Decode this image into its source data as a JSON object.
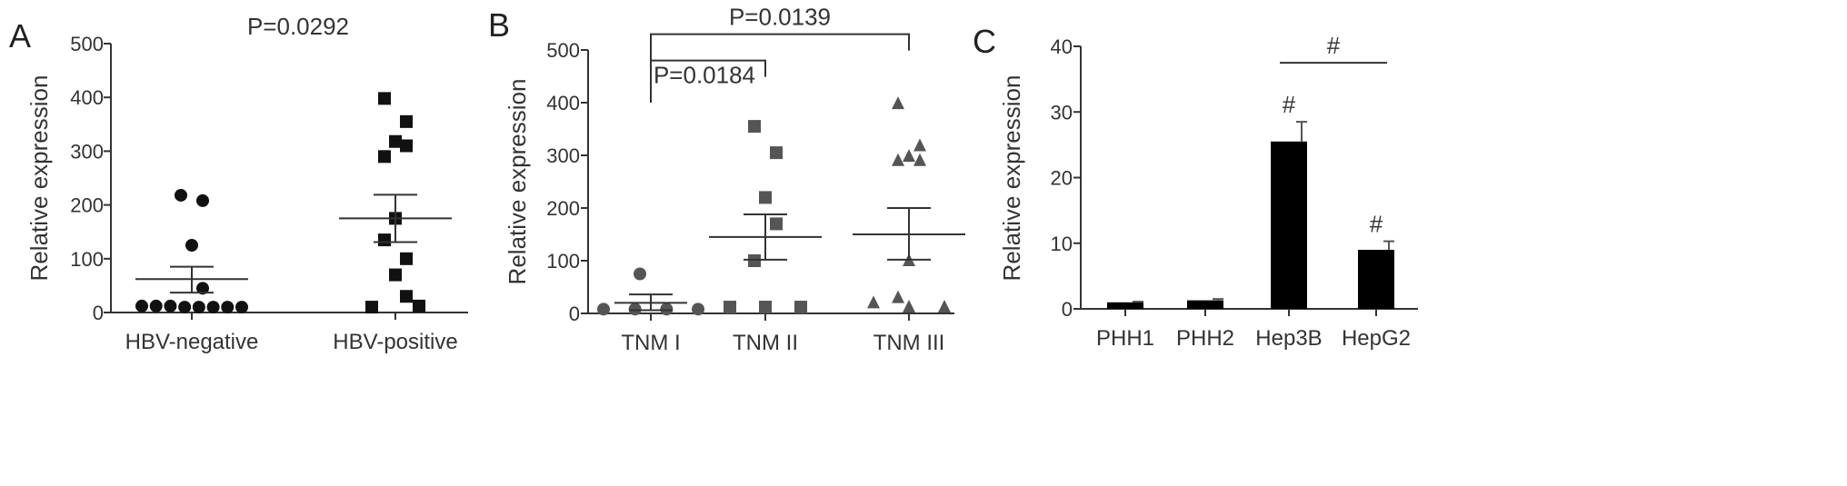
{
  "chart_data": [
    {
      "type": "scatter",
      "panel": "A",
      "ylabel": "Relative expression",
      "ylim": [
        0,
        500
      ],
      "yticks": [
        0,
        100,
        200,
        300,
        400,
        500
      ],
      "categories": [
        "HBV-negative",
        "HBV-positive"
      ],
      "marker_color": "#111111",
      "groups": [
        {
          "category": "HBV-negative",
          "marker": "circle",
          "points": [
            218,
            208,
            125,
            45,
            12,
            12,
            12,
            10,
            10,
            10,
            10,
            10
          ],
          "mean": 62,
          "sem_low": 37,
          "sem_high": 85
        },
        {
          "category": "HBV-positive",
          "marker": "square",
          "points": [
            398,
            355,
            318,
            310,
            290,
            175,
            135,
            100,
            70,
            30,
            10,
            12
          ],
          "mean": 175,
          "sem_low": 131,
          "sem_high": 219
        }
      ],
      "annotations": [
        {
          "text": "P=0.0292",
          "between": [
            "HBV-negative",
            "HBV-positive"
          ],
          "bracket": false
        }
      ]
    },
    {
      "type": "scatter",
      "panel": "B",
      "ylabel": "Relative expression",
      "ylim": [
        0,
        500
      ],
      "yticks": [
        0,
        100,
        200,
        300,
        400,
        500
      ],
      "categories": [
        "TNM I",
        "TNM II",
        "TNM III"
      ],
      "marker_color": "#555555",
      "groups": [
        {
          "category": "TNM I",
          "marker": "circle",
          "points": [
            75,
            8,
            8,
            8,
            8
          ],
          "mean": 20,
          "sem_low": 6,
          "sem_high": 36
        },
        {
          "category": "TNM II",
          "marker": "square",
          "points": [
            355,
            305,
            220,
            170,
            100,
            12,
            12,
            12
          ],
          "mean": 145,
          "sem_low": 102,
          "sem_high": 188
        },
        {
          "category": "TNM III",
          "marker": "triangle",
          "points": [
            398,
            318,
            298,
            290,
            290,
            100,
            30,
            20,
            12,
            12
          ],
          "mean": 150,
          "sem_low": 102,
          "sem_high": 200
        }
      ],
      "annotations": [
        {
          "text": "P=0.0139",
          "between": [
            "TNM I",
            "TNM III"
          ],
          "bracket": true,
          "y": 530
        },
        {
          "text": "P=0.0184",
          "between": [
            "TNM I",
            "TNM II"
          ],
          "bracket": true,
          "y": 480
        }
      ]
    },
    {
      "type": "bar",
      "panel": "C",
      "ylabel": "Relative expression",
      "ylim": [
        0,
        40
      ],
      "yticks": [
        0,
        10,
        20,
        30,
        40
      ],
      "categories": [
        "PHH1",
        "PHH2",
        "Hep3B",
        "HepG2"
      ],
      "values": [
        1.0,
        1.3,
        25.5,
        9.0
      ],
      "errors": [
        0.1,
        0.2,
        3.0,
        1.3
      ],
      "bar_color": "#000000",
      "annotations": [
        {
          "text": "#",
          "on": "Hep3B"
        },
        {
          "text": "#",
          "on": "HepG2"
        },
        {
          "text": "#",
          "between": [
            "Hep3B",
            "HepG2"
          ],
          "line": true,
          "y": 37.5
        }
      ]
    }
  ]
}
